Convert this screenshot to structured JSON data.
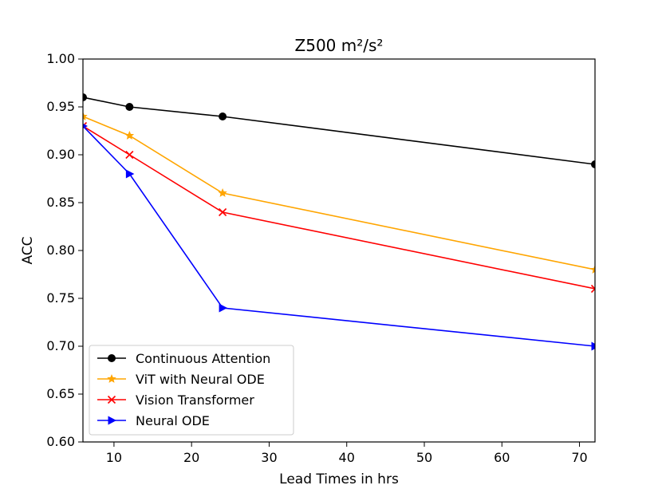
{
  "chart_data": {
    "type": "line",
    "title": "Z500 m²/s²",
    "xlabel": "Lead Times in hrs",
    "ylabel": "ACC",
    "xlim": [
      6,
      72
    ],
    "ylim": [
      0.6,
      1.0
    ],
    "x_ticks": [
      10,
      20,
      30,
      40,
      50,
      60,
      70
    ],
    "y_ticks": [
      0.6,
      0.65,
      0.7,
      0.75,
      0.8,
      0.85,
      0.9,
      0.95,
      1.0
    ],
    "y_tick_labels": [
      "0.60",
      "0.65",
      "0.70",
      "0.75",
      "0.80",
      "0.85",
      "0.90",
      "0.95",
      "1.00"
    ],
    "x": [
      6,
      12,
      24,
      72
    ],
    "legend_position": "lower-left",
    "series": [
      {
        "name": "Continuous Attention",
        "values": [
          0.96,
          0.95,
          0.94,
          0.89
        ],
        "color": "#000000",
        "marker": "circle"
      },
      {
        "name": "ViT with Neural ODE",
        "values": [
          0.94,
          0.92,
          0.86,
          0.78
        ],
        "color": "#ffa500",
        "marker": "star"
      },
      {
        "name": "Vision Transformer",
        "values": [
          0.93,
          0.9,
          0.84,
          0.76
        ],
        "color": "#ff0000",
        "marker": "x"
      },
      {
        "name": "Neural ODE",
        "values": [
          0.93,
          0.88,
          0.74,
          0.7
        ],
        "color": "#0000ff",
        "marker": "triangle-right"
      }
    ]
  }
}
